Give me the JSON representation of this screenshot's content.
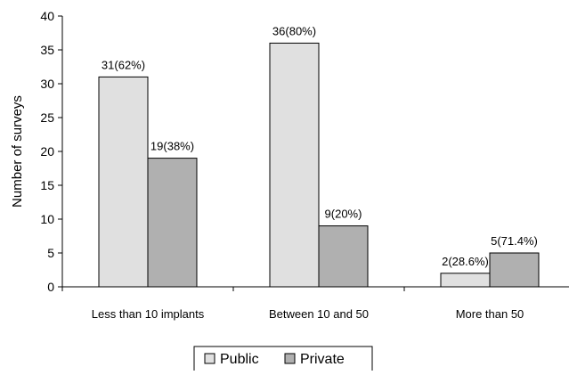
{
  "chart_data": {
    "type": "bar",
    "categories": [
      "Less than 10 implants",
      "Between 10 and 50",
      "More than 50"
    ],
    "series": [
      {
        "name": "Public",
        "values": [
          31,
          36,
          2
        ],
        "labels": [
          "31(62%)",
          "36(80%)",
          "2(28.6%)"
        ],
        "color": "#e0e0e0"
      },
      {
        "name": "Private",
        "values": [
          19,
          9,
          5
        ],
        "labels": [
          "19(38%)",
          "9(20%)",
          "5(71.4%)"
        ],
        "color": "#b0b0b0"
      }
    ],
    "ylabel": "Number of surveys",
    "ylim": [
      0,
      40
    ],
    "yticks": [
      0,
      5,
      10,
      15,
      20,
      25,
      30,
      35,
      40
    ],
    "legend_position": "bottom",
    "grid": false
  }
}
